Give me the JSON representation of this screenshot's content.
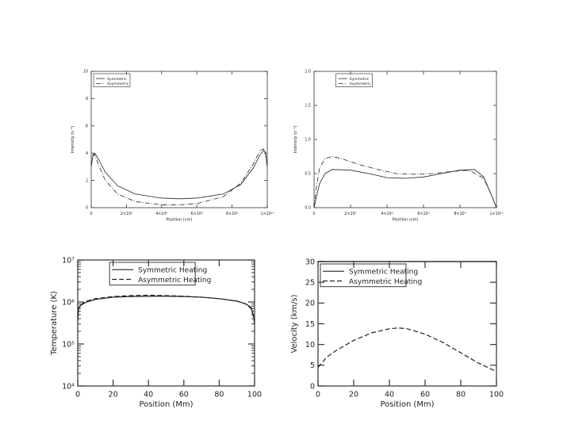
{
  "chart_data": [
    {
      "type": "line",
      "title": "",
      "xlabel": "Position (cm)",
      "ylabel": "Intensity (s⁻¹)",
      "xlim": [
        0,
        10000000000.0
      ],
      "ylim": [
        0,
        10
      ],
      "x_ticks": [
        "0",
        "2×10⁹",
        "4×10⁹",
        "6×10⁹",
        "8×10⁹",
        "1×10¹⁰"
      ],
      "y_ticks": [
        "0",
        "2",
        "4",
        "6",
        "8",
        "10"
      ],
      "legend_position": "top-left",
      "legend": [
        "Symmetric",
        "Asymmetric"
      ],
      "series": [
        {
          "name": "Symmetric",
          "style": "solid",
          "x": [
            0,
            100000000.0,
            200000000.0,
            400000000.0,
            800000000.0,
            1500000000.0,
            2500000000.0,
            4000000000.0,
            5000000000.0,
            6000000000.0,
            7500000000.0,
            8500000000.0,
            9200000000.0,
            9600000000.0,
            9800000000.0,
            9900000000.0,
            10000000000.0
          ],
          "y": [
            3.0,
            3.9,
            4.0,
            3.6,
            2.6,
            1.6,
            1.0,
            0.7,
            0.65,
            0.7,
            1.0,
            1.7,
            2.9,
            3.9,
            4.2,
            4.0,
            3.0
          ]
        },
        {
          "name": "Asymmetric",
          "style": "dash-dot",
          "x": [
            0,
            100000000.0,
            200000000.0,
            400000000.0,
            800000000.0,
            1500000000.0,
            2500000000.0,
            4000000000.0,
            5000000000.0,
            6000000000.0,
            7500000000.0,
            8500000000.0,
            9200000000.0,
            9600000000.0,
            9800000000.0,
            9900000000.0,
            10000000000.0
          ],
          "y": [
            3.1,
            3.8,
            3.9,
            3.2,
            2.0,
            1.0,
            0.45,
            0.2,
            0.2,
            0.3,
            0.8,
            1.8,
            3.2,
            4.2,
            4.3,
            4.1,
            3.2
          ]
        }
      ]
    },
    {
      "type": "line",
      "title": "",
      "xlabel": "Position (cm)",
      "ylabel": "Intensity (s⁻¹)",
      "xlim": [
        0,
        10000000000.0
      ],
      "ylim": [
        0,
        2.0
      ],
      "x_ticks": [
        "0",
        "2×10⁹",
        "4×10⁹",
        "6×10⁹",
        "8×10⁹",
        "1×10¹⁰"
      ],
      "y_ticks": [
        "0.0",
        "0.5",
        "1.0",
        "1.5",
        "2.0"
      ],
      "legend_position": "top-right",
      "legend": [
        "Symmetric",
        "Asymmetric"
      ],
      "series": [
        {
          "name": "Symmetric",
          "style": "solid",
          "x": [
            0,
            100000000.0,
            300000000.0,
            600000000.0,
            1000000000.0,
            2000000000.0,
            3000000000.0,
            4000000000.0,
            5000000000.0,
            6000000000.0,
            7000000000.0,
            8000000000.0,
            8800000000.0,
            9300000000.0,
            9700000000.0,
            10000000000.0
          ],
          "y": [
            0.0,
            0.12,
            0.35,
            0.5,
            0.56,
            0.55,
            0.5,
            0.44,
            0.43,
            0.45,
            0.5,
            0.55,
            0.56,
            0.45,
            0.2,
            0.0
          ]
        },
        {
          "name": "Asymmetric",
          "style": "dash-dot",
          "x": [
            0,
            100000000.0,
            300000000.0,
            600000000.0,
            1000000000.0,
            1500000000.0,
            2500000000.0,
            3500000000.0,
            4500000000.0,
            5500000000.0,
            6500000000.0,
            7500000000.0,
            8500000000.0,
            9300000000.0,
            9700000000.0,
            10000000000.0
          ],
          "y": [
            0.0,
            0.25,
            0.58,
            0.72,
            0.75,
            0.72,
            0.63,
            0.56,
            0.5,
            0.49,
            0.5,
            0.53,
            0.55,
            0.43,
            0.2,
            0.0
          ]
        }
      ]
    },
    {
      "type": "line",
      "title": "",
      "xlabel": "Position (Mm)",
      "ylabel": "Temperature (K)",
      "xlim": [
        0,
        100
      ],
      "ylim": [
        10000,
        10000000
      ],
      "yscale": "log",
      "x_ticks": [
        "0",
        "20",
        "40",
        "60",
        "80",
        "100"
      ],
      "y_ticks": [
        "10⁴",
        "10⁵",
        "10⁶",
        "10⁷"
      ],
      "legend_position": "top-center",
      "legend": [
        "Symmetric Heating",
        "Asymmetric Heating"
      ],
      "series": [
        {
          "name": "Symmetric Heating",
          "style": "solid",
          "x": [
            0,
            0.5,
            2,
            5,
            10,
            20,
            30,
            40,
            50,
            60,
            70,
            80,
            90,
            95,
            98,
            99.5,
            100
          ],
          "y": [
            350000,
            700000,
            850000,
            1000000,
            1150000,
            1300000,
            1350000,
            1370000,
            1370000,
            1350000,
            1300000,
            1200000,
            1050000,
            900000,
            750000,
            450000,
            350000
          ]
        },
        {
          "name": "Asymmetric Heating",
          "style": "dashed",
          "x": [
            0,
            0.5,
            2,
            5,
            10,
            20,
            30,
            40,
            50,
            60,
            70,
            80,
            90,
            95,
            98,
            99.5,
            100
          ],
          "y": [
            400000,
            720000,
            880000,
            1050000,
            1200000,
            1350000,
            1420000,
            1450000,
            1420000,
            1370000,
            1300000,
            1200000,
            1050000,
            900000,
            700000,
            420000,
            300000
          ]
        }
      ]
    },
    {
      "type": "line",
      "title": "",
      "xlabel": "Position (Mm)",
      "ylabel": "Velocity (km/s)",
      "xlim": [
        0,
        100
      ],
      "ylim": [
        0,
        30
      ],
      "x_ticks": [
        "0",
        "20",
        "40",
        "60",
        "80",
        "100"
      ],
      "y_ticks": [
        "0",
        "5",
        "10",
        "15",
        "20",
        "25",
        "30"
      ],
      "legend_position": "top-left",
      "legend": [
        "Symmetric Heating",
        "Asymmetric Heating"
      ],
      "series": [
        {
          "name": "Symmetric Heating",
          "style": "solid",
          "x": [
            0,
            100
          ],
          "y": [
            30,
            30
          ]
        },
        {
          "name": "Asymmetric Heating",
          "style": "dashed",
          "x": [
            0,
            5,
            10,
            20,
            30,
            40,
            45,
            50,
            60,
            70,
            80,
            90,
            95,
            100
          ],
          "y": [
            4.5,
            7.0,
            8.5,
            11.0,
            12.8,
            13.8,
            14.0,
            13.8,
            12.5,
            10.5,
            8.0,
            5.5,
            4.5,
            3.5
          ]
        }
      ]
    }
  ]
}
